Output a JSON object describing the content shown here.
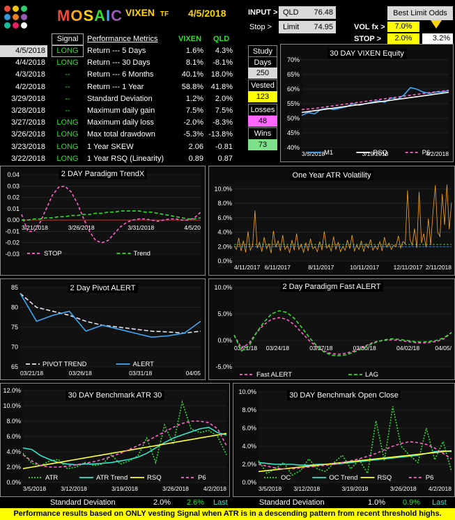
{
  "header": {
    "brand": "MOSAIC",
    "ticker": "VIXEN",
    "ticker_suffix": "TF",
    "date": "4/5/2018",
    "input_label": "INPUT >",
    "input_symbol": "QLD",
    "input_value": "76.48",
    "stop_label": "Stop >",
    "limit_label": "Limit",
    "limit_value": "74.95",
    "best_limit_label": "Best Limit Odds",
    "volfx_label": "VOL fx >",
    "volfx_value": "7.0%",
    "stop2_label": "STOP  >",
    "stop2_value": "2.0%",
    "stop2_result": "3.2%",
    "logo_colors": [
      "#e74c3c",
      "#f1c40f",
      "#2ecc71",
      "#3498db",
      "#e67e22",
      "#9b59b6",
      "#1abc9c",
      "#e91e63",
      "#ffffff"
    ]
  },
  "metrics": {
    "headers": {
      "signal": "Signal",
      "metric": "Performance Metrics",
      "vixen": "VIXEN",
      "qld": "QLD"
    },
    "rows": [
      {
        "date": "4/5/2018",
        "signal": "LONG",
        "metric": "Return --- 5 Days",
        "vixen": "1.6%",
        "qld": "4.3%"
      },
      {
        "date": "4/4/2018",
        "signal": "LONG",
        "metric": "Return --- 30 Days",
        "vixen": "8.1%",
        "qld": "-8.1%"
      },
      {
        "date": "4/3/2018",
        "signal": "--",
        "metric": "Return --- 6 Months",
        "vixen": "40.1%",
        "qld": "18.0%"
      },
      {
        "date": "4/2/2018",
        "signal": "--",
        "metric": "Return --- 1 Year",
        "vixen": "58.8%",
        "qld": "41.8%"
      },
      {
        "date": "3/29/2018",
        "signal": "--",
        "metric": "Standard Deviation",
        "vixen": "1.2%",
        "qld": "2.0%"
      },
      {
        "date": "3/28/2018",
        "signal": "--",
        "metric": "Maximum daily gain",
        "vixen": "7.5%",
        "qld": "7.5%"
      },
      {
        "date": "3/27/2018",
        "signal": "LONG",
        "metric": "Maximum daily loss",
        "vixen": "-2.0%",
        "qld": "-8.3%"
      },
      {
        "date": "3/26/2018",
        "signal": "LONG",
        "metric": "Max total drawdown",
        "vixen": "-5.3%",
        "qld": "-13.8%"
      },
      {
        "date": "3/23/2018",
        "signal": "LONG",
        "metric": "1 Year SKEW",
        "vixen": "2.06",
        "qld": "-0.81"
      },
      {
        "date": "3/22/2018",
        "signal": "LONG",
        "metric": "1 Year RSQ  (Linearity)",
        "vixen": "0.89",
        "qld": "0.87"
      }
    ]
  },
  "study": {
    "study_label": "Study",
    "days_label": "Days",
    "days_value": "250",
    "vested_label": "Vested",
    "vested_value": "123",
    "losses_label": "Losses",
    "losses_value": "48",
    "wins_label": "Wins",
    "wins_value": "73"
  },
  "footer": {
    "std_label_left": "Standard Deviation",
    "std_left_1": "2.0%",
    "std_left_2": "2.6%",
    "std_left_last": "Last",
    "std_label_right": "Standard Deviation",
    "std_right_1": "1.0%",
    "std_right_2": "0.9%",
    "std_right_last": "Last",
    "note": "Performance results based on ONLY vesting Signal when ATR is in a descending pattern from recent threshold highs."
  },
  "chart_data": [
    {
      "id": "equity",
      "type": "line",
      "title": "30 DAY  VIXEN  Equity",
      "xticks": [
        "3/5/2018",
        "3/19/2018",
        "4/2/2018"
      ],
      "yticks": [
        "40%",
        "45%",
        "50%",
        "55%",
        "60%",
        "65%",
        "70%"
      ],
      "ylim": [
        40,
        70
      ],
      "n": 24,
      "series": [
        {
          "name": "M1",
          "color": "#3fa9f5",
          "dash": "",
          "values": [
            51,
            52,
            51.5,
            53,
            53.5,
            53,
            53.5,
            54,
            55,
            54.5,
            55,
            55.5,
            56,
            55.5,
            57,
            56.5,
            58,
            60.5,
            60,
            59,
            58.5,
            59,
            59,
            59.5
          ]
        },
        {
          "name": "RSQ",
          "color": "#ffffff",
          "dash": "",
          "values": [
            52,
            52.3,
            52.6,
            52.9,
            53.2,
            53.5,
            53.8,
            54.1,
            54.4,
            54.7,
            55,
            55.3,
            55.6,
            55.9,
            56.2,
            56.5,
            56.8,
            57.1,
            57.4,
            57.7,
            58,
            58.3,
            58.6,
            58.9
          ]
        },
        {
          "name": "P6",
          "color": "#ff66cc",
          "dash": "4,3",
          "values": [
            53,
            53.2,
            53.4,
            53.7,
            54,
            54.3,
            54.6,
            54.9,
            55.2,
            55.5,
            55.8,
            56.1,
            56.4,
            56.7,
            57,
            57.3,
            57.6,
            57.9,
            58.2,
            58.5,
            58.8,
            59.1,
            59.3,
            59.6
          ]
        }
      ]
    },
    {
      "id": "trendx",
      "type": "line",
      "title": "2  DAY  Paradigm  TrendX",
      "xticks": [
        "3/21/2018",
        "3/26/2018",
        "3/31/2018",
        "4/5/20"
      ],
      "yticks": [
        "-0.03",
        "-0.02",
        "-0.01",
        "0.00",
        "0.01",
        "0.02",
        "0.03",
        "0.04"
      ],
      "ylim": [
        -0.03,
        0.04
      ],
      "n": 30,
      "series": [
        {
          "name": "STOP",
          "color": "#ff66cc",
          "dash": "4,3",
          "values": [
            0.005,
            -0.01,
            -0.01,
            -0.002,
            0.01,
            0.022,
            0.029,
            0.03,
            0.025,
            0.015,
            0.002,
            -0.01,
            -0.018,
            -0.02,
            -0.018,
            -0.012,
            -0.006,
            -0.002,
            0.0,
            0.001,
            0.001,
            0.0,
            -0.001,
            0.0,
            0.001,
            0.001,
            0.0,
            0.0,
            0.002,
            0.007
          ]
        },
        {
          "name": "Trend",
          "color": "#33dd33",
          "dash": "5,3",
          "values": [
            0.0,
            0.0,
            0.001,
            0.001,
            0.002,
            0.002,
            0.003,
            0.003,
            0.004,
            0.004,
            0.005,
            0.005,
            0.006,
            0.006,
            0.007,
            0.007,
            0.008,
            0.008,
            0.008,
            0.008,
            0.007,
            0.007,
            0.006,
            0.005,
            0.004,
            0.003,
            0.002,
            0.001,
            0.001,
            0.002
          ]
        }
      ],
      "hline": 0
    },
    {
      "id": "atr",
      "type": "line",
      "title": "One Year  ATR Volatility",
      "xticks": [
        "4/11/2017",
        "6/11/2017",
        "8/11/2017",
        "10/11/2017",
        "12/11/2017",
        "2/11/2018"
      ],
      "yticks": [
        "0.0%",
        "2.0%",
        "4.0%",
        "6.0%",
        "8.0%",
        "10.0%"
      ],
      "ylim": [
        0,
        11
      ],
      "series": [
        {
          "name": "ATR",
          "color": "#f5a623",
          "dash": "",
          "values": [
            2.1,
            1.6,
            3.2,
            1.4,
            2.8,
            1.2,
            4.1,
            1.5,
            2.2,
            7.0,
            1.8,
            2.6,
            1.3,
            3.3,
            1.7,
            2.4,
            1.1,
            4.2,
            1.9,
            2.8,
            1.4,
            3.6,
            1.6,
            2.1,
            1.2,
            2.9,
            1.5,
            3.8,
            1.6,
            2.3,
            1.2,
            2.5,
            1.4,
            3.1,
            1.7,
            2.0,
            1.3,
            2.7,
            1.5,
            4.1,
            1.8,
            2.2,
            1.4,
            3.4,
            1.6,
            2.6,
            1.3,
            2.0,
            1.5,
            2.9,
            1.7,
            3.6,
            1.4,
            2.2,
            1.6,
            2.8,
            1.3,
            2.4,
            1.8,
            3.0,
            1.5,
            2.1,
            1.6,
            2.7,
            1.4,
            3.3,
            1.9,
            2.5,
            1.6,
            2.2,
            2.0,
            3.5,
            1.8,
            2.7,
            2.4,
            9.8,
            3.0,
            2.2,
            4.5,
            1.8,
            9.6,
            2.5,
            3.8,
            1.9,
            5.9,
            2.2,
            6.8,
            10.5,
            4.0,
            3.4,
            9.3,
            5.0,
            10.6,
            4.4,
            8.1
          ]
        }
      ],
      "hlines": [
        {
          "value": 2.3,
          "color": "#33dd33"
        },
        {
          "value": 2.0,
          "color": "#3fa9f5"
        }
      ]
    },
    {
      "id": "pivot",
      "type": "line",
      "title": "2 Day Pivot  ALERT",
      "xticks": [
        "03/21/18",
        "03/26/18",
        "03/31/18",
        "04/05"
      ],
      "yticks": [
        "65",
        "70",
        "75",
        "80",
        "85"
      ],
      "ylim": [
        65,
        85
      ],
      "n": 12,
      "series": [
        {
          "name": "PIVOT  TREND",
          "color": "#e6e6f5",
          "dash": "6,3",
          "values": [
            83.5,
            80,
            79,
            78,
            76.5,
            75.5,
            75,
            74.5,
            74,
            73.8,
            73.5,
            74
          ]
        },
        {
          "name": "ALERT",
          "color": "#3fa9f5",
          "dash": "",
          "values": [
            83.5,
            76.5,
            78,
            79,
            74,
            75.5,
            74.5,
            73.5,
            72.5,
            72.8,
            73.5,
            76.5
          ]
        }
      ]
    },
    {
      "id": "fast",
      "type": "line",
      "title": "2 Day  Paradigm  Fast  ALERT",
      "xticks": [
        "03/21/18",
        "03/24/18",
        "03/27/18",
        "03/30/18",
        "04/02/18",
        "04/05/"
      ],
      "yticks": [
        "-5.0%",
        "0.0%",
        "5.0%",
        "10.0%"
      ],
      "ylim": [
        -5,
        10
      ],
      "n": 30,
      "series": [
        {
          "name": "Fast ALERT",
          "color": "#ff66cc",
          "dash": "4,3",
          "values": [
            1.0,
            -1.5,
            -0.5,
            1.5,
            3.0,
            4.0,
            4.3,
            4.0,
            3.0,
            1.5,
            0.0,
            -1.2,
            -2.0,
            -2.5,
            -2.6,
            -2.4,
            -2.0,
            -1.4,
            -0.7,
            -0.2,
            0.0,
            0.1,
            0.0,
            -0.2,
            -0.4,
            -0.5,
            -0.4,
            -0.2,
            0.3,
            1.5
          ]
        },
        {
          "name": "LAG",
          "color": "#33dd33",
          "dash": "5,3",
          "values": [
            1.0,
            -2.0,
            -1.0,
            1.5,
            3.5,
            5.0,
            5.6,
            5.3,
            4.2,
            2.5,
            0.6,
            -1.0,
            -2.2,
            -2.8,
            -2.9,
            -2.7,
            -2.2,
            -1.6,
            -0.9,
            -0.3,
            0.1,
            0.3,
            0.2,
            0.0,
            -0.2,
            -0.3,
            -0.2,
            0.0,
            0.5,
            1.5
          ]
        }
      ]
    },
    {
      "id": "bench_atr",
      "type": "line",
      "title": "30 DAY  Benchmark  ATR 30",
      "xticks": [
        "3/5/2018",
        "3/12/2018",
        "3/19/2018",
        "3/26/2018",
        "4/2/2018"
      ],
      "yticks": [
        "0.0%",
        "2.0%",
        "4.0%",
        "6.0%",
        "8.0%",
        "10.0%",
        "12.0%"
      ],
      "ylim": [
        0,
        12
      ],
      "n": 24,
      "series": [
        {
          "name": "ATR",
          "color": "#33dd33",
          "dash": "2,2",
          "values": [
            3.8,
            2.5,
            2.2,
            2.8,
            3.0,
            1.8,
            2.0,
            2.6,
            2.2,
            2.4,
            3.6,
            2.4,
            2.8,
            3.5,
            5.8,
            2.6,
            7.5,
            5.0,
            10.5,
            7.0,
            6.5,
            6.8,
            6.0,
            3.6
          ]
        },
        {
          "name": "ATR Trend",
          "color": "#33e6cc",
          "dash": "",
          "values": [
            4.5,
            4.3,
            3.5,
            3.0,
            2.6,
            2.4,
            2.3,
            2.4,
            2.4,
            2.5,
            2.6,
            2.8,
            3.0,
            3.3,
            3.8,
            4.5,
            5.2,
            5.8,
            6.2,
            6.6,
            7.0,
            7.2,
            6.5,
            6.2
          ]
        },
        {
          "name": "RSQ",
          "color": "#ffff33",
          "dash": "",
          "values": [
            1.8,
            2.0,
            2.2,
            2.4,
            2.6,
            2.8,
            3.0,
            3.2,
            3.4,
            3.6,
            3.8,
            4.0,
            4.2,
            4.4,
            4.6,
            4.8,
            5.0,
            5.2,
            5.4,
            5.6,
            5.8,
            6.0,
            6.2,
            6.4
          ]
        },
        {
          "name": "P6",
          "color": "#ff66cc",
          "dash": "4,3",
          "values": [
            3.6,
            2.8,
            2.2,
            2.0,
            2.0,
            2.1,
            2.3,
            2.5,
            2.7,
            3.0,
            3.4,
            3.8,
            4.3,
            4.8,
            5.4,
            6.0,
            6.6,
            7.2,
            7.7,
            8.0,
            8.0,
            7.8,
            7.0,
            4.8
          ]
        }
      ]
    },
    {
      "id": "bench_oc",
      "type": "line",
      "title": "30 DAY  Benchmark  Open Close",
      "xticks": [
        "3/5/2018",
        "3/12/2018",
        "3/19/2018",
        "3/26/2018",
        "4/2/2018"
      ],
      "yticks": [
        "0.0%",
        "2.0%",
        "4.0%",
        "6.0%",
        "8.0%",
        "10.0%"
      ],
      "ylim": [
        0,
        10
      ],
      "n": 24,
      "series": [
        {
          "name": "OC",
          "color": "#33dd33",
          "dash": "2,2",
          "values": [
            2.4,
            1.0,
            1.5,
            2.2,
            0.8,
            1.3,
            2.6,
            1.5,
            1.2,
            2.2,
            3.0,
            1.5,
            2.5,
            1.0,
            6.8,
            2.4,
            8.4,
            4.0,
            3.0,
            2.2,
            6.0,
            2.5,
            4.5,
            1.2
          ]
        },
        {
          "name": "OC Trend",
          "color": "#33e6cc",
          "dash": "",
          "values": [
            2.2,
            2.1,
            2.0,
            2.0,
            2.0,
            1.9,
            1.9,
            2.0,
            2.0,
            2.0,
            2.1,
            2.2,
            2.3,
            2.4,
            2.5,
            2.6,
            2.7,
            2.8,
            2.9,
            3.0,
            3.2,
            3.4,
            3.5,
            3.4
          ]
        },
        {
          "name": "RSQ",
          "color": "#ffff33",
          "dash": "",
          "values": [
            1.2,
            1.3,
            1.4,
            1.5,
            1.6,
            1.7,
            1.8,
            1.9,
            2.0,
            2.1,
            2.2,
            2.3,
            2.4,
            2.5,
            2.6,
            2.7,
            2.8,
            2.9,
            3.0,
            3.1,
            3.2,
            3.3,
            3.4,
            3.5
          ]
        },
        {
          "name": "P6",
          "color": "#ff66cc",
          "dash": "4,3",
          "values": [
            2.0,
            1.8,
            1.6,
            1.5,
            1.5,
            1.6,
            1.7,
            1.8,
            1.9,
            2.0,
            2.2,
            2.4,
            2.6,
            2.9,
            3.2,
            3.6,
            4.0,
            4.3,
            4.5,
            4.4,
            4.2,
            3.8,
            3.2,
            2.6
          ]
        }
      ]
    }
  ]
}
